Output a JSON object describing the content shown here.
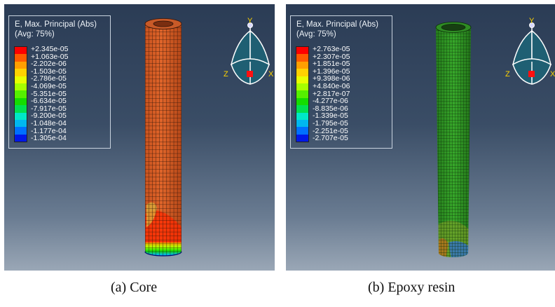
{
  "panels": [
    {
      "legend": {
        "title": "E, Max. Principal (Abs)",
        "subtitle": "(Avg: 75%)",
        "values": [
          "+2.345e-05",
          "+1.063e-05",
          "-2.202e-06",
          "-1.503e-05",
          "-2.786e-05",
          "-4.069e-05",
          "-5.351e-05",
          "-6.634e-05",
          "-7.917e-05",
          "-9.200e-05",
          "-1.048e-04",
          "-1.177e-04",
          "-1.305e-04"
        ]
      },
      "triad": {
        "y": "Y",
        "x": "X",
        "z": "Z"
      },
      "caption": "(a) Core"
    },
    {
      "legend": {
        "title": "E, Max. Principal (Abs)",
        "subtitle": "(Avg: 75%)",
        "values": [
          "+2.763e-05",
          "+2.307e-05",
          "+1.851e-05",
          "+1.396e-05",
          "+9.398e-06",
          "+4.840e-06",
          "+2.817e-07",
          "-4.277e-06",
          "-8.835e-06",
          "-1.339e-05",
          "-1.795e-05",
          "-2.251e-05",
          "-2.707e-05"
        ]
      },
      "triad": {
        "y": "Y",
        "x": "X",
        "z": "Z"
      },
      "caption": "(b) Epoxy resin"
    }
  ],
  "colors": {
    "contour_scale": [
      "#ff0000",
      "#ff5a00",
      "#ff9f00",
      "#ffd200",
      "#e8ff00",
      "#a6ff00",
      "#55f000",
      "#14dc00",
      "#00e050",
      "#00e8c8",
      "#00b8f0",
      "#0070ff",
      "#0018e8"
    ],
    "core_body": "#d2571e",
    "resin_body": "#2f9a23",
    "viewport_top": "#2b3c55",
    "viewport_bottom": "#9aa7b6"
  }
}
